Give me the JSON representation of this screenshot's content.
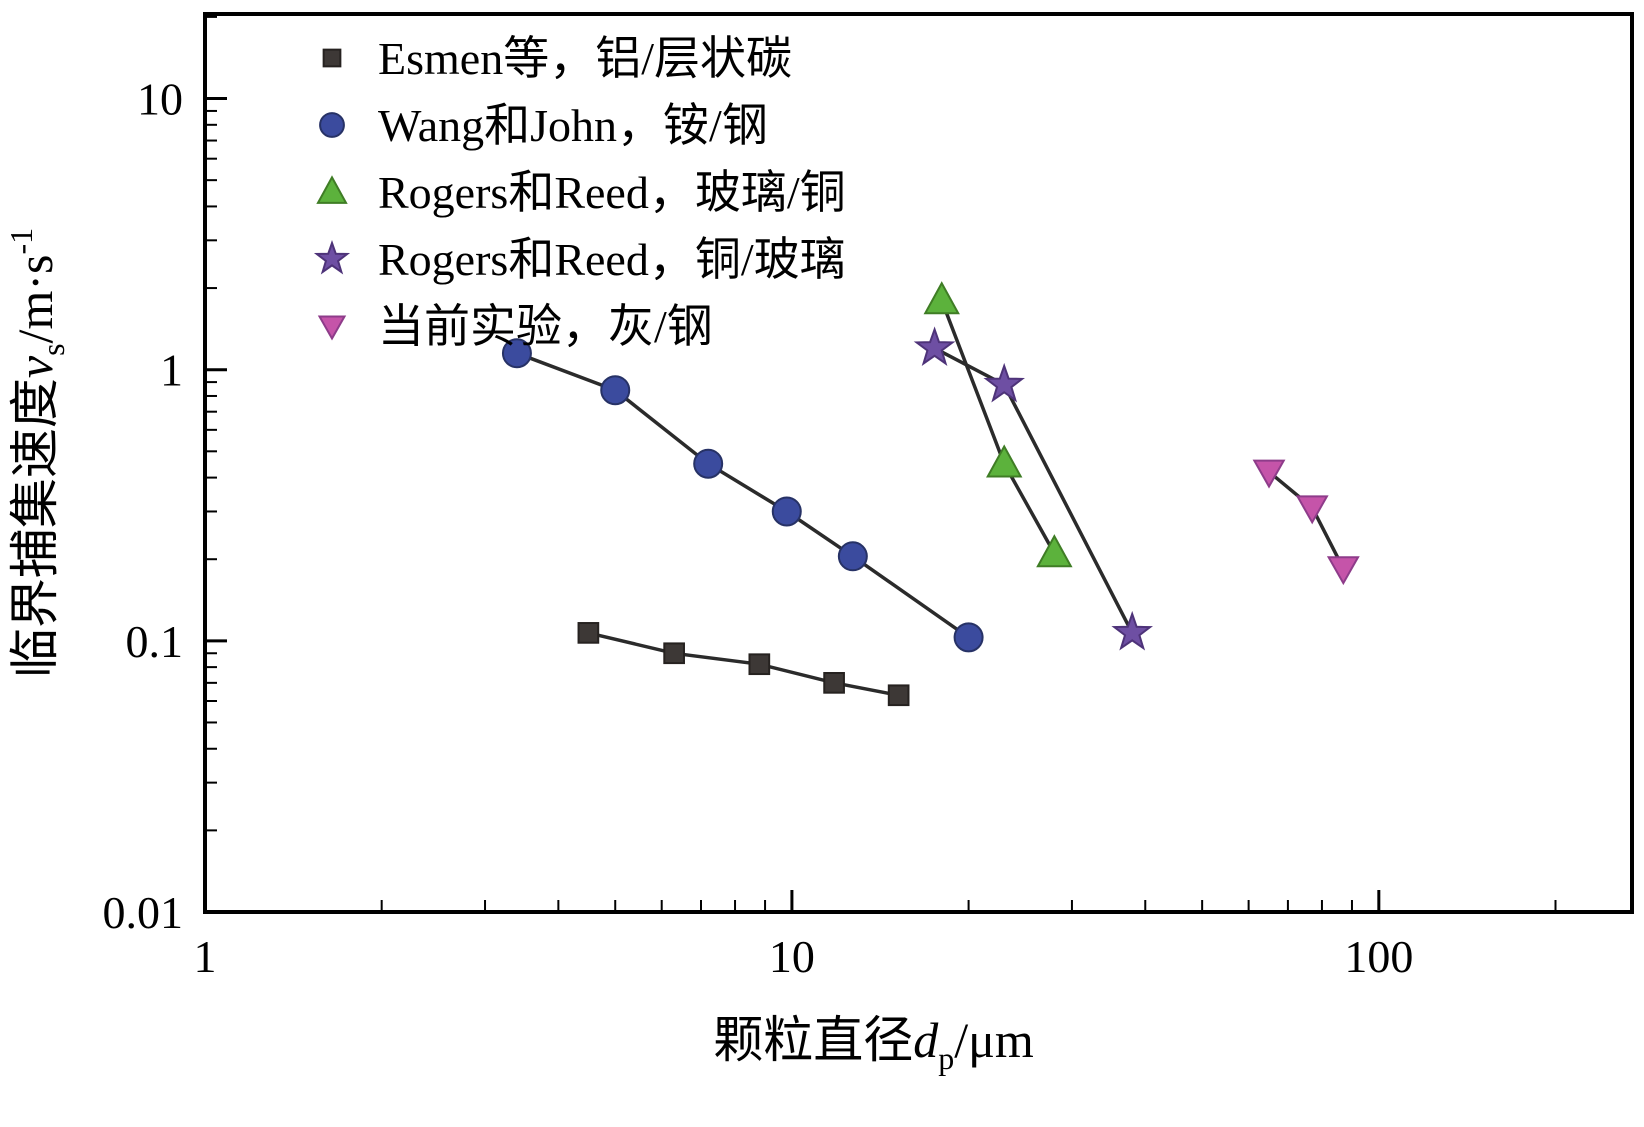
{
  "figure": {
    "background": "#ffffff",
    "border_color": "#000000"
  },
  "axes": {
    "x": {
      "label_prefix": "颗粒直径",
      "label_var": "d",
      "label_sub": "p",
      "label_unit": "/μm",
      "tick_labels": [
        "1",
        "10",
        "100"
      ]
    },
    "y": {
      "label_prefix": "临界捕集速度",
      "label_var": "v",
      "label_sub": "s",
      "label_unit": "/m·s",
      "label_sup": "-1",
      "tick_labels": [
        "0.01",
        "0.1",
        "1",
        "10"
      ]
    }
  },
  "chart_data": {
    "type": "line",
    "xscale": "log",
    "yscale": "log",
    "xlim": [
      1,
      270
    ],
    "ylim": [
      0.01,
      20.5
    ],
    "grid": false,
    "legend_position": "upper-left",
    "line_color": "#2b2b2b",
    "series": [
      {
        "name": "Esmen等，铝/层状碳",
        "marker": "square",
        "color": "#3d3836",
        "edge": "#262220",
        "x": [
          4.5,
          6.3,
          8.8,
          11.8,
          15.2
        ],
        "y": [
          0.107,
          0.09,
          0.082,
          0.07,
          0.063
        ]
      },
      {
        "name": "Wang和John，铵/钢",
        "marker": "circle",
        "color": "#3b4b9e",
        "edge": "#273266",
        "x": [
          3.4,
          5.0,
          7.2,
          9.8,
          12.7,
          20.0
        ],
        "y": [
          1.15,
          0.84,
          0.45,
          0.3,
          0.205,
          0.103
        ]
      },
      {
        "name": "Rogers和Reed，玻璃/铜",
        "marker": "triangle-up",
        "color": "#5cb23c",
        "edge": "#3f7d25",
        "x": [
          18,
          23,
          28
        ],
        "y": [
          1.8,
          0.45,
          0.21
        ]
      },
      {
        "name": "Rogers和Reed，铜/玻璃",
        "marker": "star",
        "color": "#6e4fa3",
        "edge": "#4e3379",
        "x": [
          17.5,
          23,
          38
        ],
        "y": [
          1.2,
          0.88,
          0.107
        ]
      },
      {
        "name": "当前实验，灰/钢",
        "marker": "triangle-down",
        "color": "#c554a9",
        "edge": "#8e3c8a",
        "x": [
          65,
          77,
          87
        ],
        "y": [
          0.42,
          0.31,
          0.185
        ]
      }
    ]
  }
}
